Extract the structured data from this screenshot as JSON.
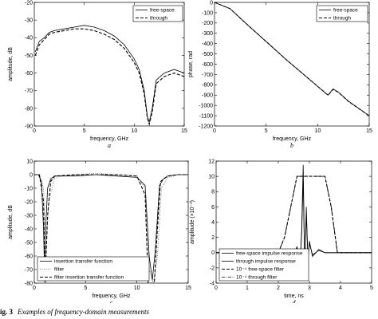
{
  "caption": {
    "label": "ig. 3",
    "text": "Examples of frequency-domain measurements"
  },
  "chart_data": [
    {
      "type": "line",
      "panel": "a",
      "xlabel": "frequency, GHz",
      "ylabel": "amplitude, dB",
      "xlim": [
        0,
        15
      ],
      "ylim": [
        -90,
        -20
      ],
      "xticks": [
        0,
        5,
        10,
        15
      ],
      "yticks": [
        -90,
        -80,
        -70,
        -60,
        -50,
        -40,
        -30,
        -20
      ],
      "legend": {
        "position": "top-right",
        "entries": [
          "free-space",
          "through"
        ]
      },
      "series": [
        {
          "name": "free-space",
          "style": "solid",
          "x": [
            0.1,
            0.5,
            1,
            1.5,
            2,
            3,
            4,
            5,
            6,
            7,
            8,
            9,
            10,
            10.5,
            11,
            11.3,
            11.5,
            11.8,
            12.2,
            13,
            14,
            15
          ],
          "y": [
            -48,
            -42,
            -40,
            -37,
            -36,
            -35,
            -34,
            -33,
            -34,
            -36,
            -39,
            -44,
            -52,
            -58,
            -70,
            -84,
            -88,
            -80,
            -64,
            -60,
            -58,
            -60
          ]
        },
        {
          "name": "through",
          "style": "dashed",
          "x": [
            0.1,
            0.5,
            1,
            1.5,
            2,
            3,
            4,
            5,
            6,
            7,
            8,
            9,
            10,
            10.5,
            11,
            11.3,
            11.5,
            11.8,
            12.2,
            13,
            14,
            15
          ],
          "y": [
            -50,
            -44,
            -41,
            -38,
            -37,
            -36,
            -35,
            -35,
            -36,
            -38,
            -41,
            -46,
            -54,
            -60,
            -72,
            -85,
            -89,
            -82,
            -66,
            -62,
            -60,
            -62
          ]
        }
      ]
    },
    {
      "type": "line",
      "panel": "b",
      "xlabel": "frequency, GHz",
      "ylabel": "phase, rad",
      "xlim": [
        0,
        15
      ],
      "ylim": [
        -1200,
        0
      ],
      "xticks": [
        0,
        5,
        10,
        15
      ],
      "yticks": [
        -1200,
        -1100,
        -1000,
        -900,
        -800,
        -700,
        -600,
        -500,
        -400,
        -300,
        -200,
        -100,
        0
      ],
      "legend": {
        "position": "top-right",
        "entries": [
          "free-space",
          "through"
        ]
      },
      "series": [
        {
          "name": "free-space",
          "style": "solid",
          "x": [
            0,
            0.5,
            1,
            1.5,
            3,
            5,
            7,
            9,
            11,
            11.5,
            12,
            13,
            15
          ],
          "y": [
            0,
            -20,
            -40,
            -60,
            -200,
            -380,
            -560,
            -730,
            -900,
            -840,
            -870,
            -960,
            -1100
          ]
        },
        {
          "name": "through",
          "style": "dashed",
          "x": [
            0,
            0.5,
            1,
            1.5,
            3,
            5,
            7,
            9,
            11,
            11.5,
            12,
            13,
            15
          ],
          "y": [
            0,
            -20,
            -40,
            -60,
            -200,
            -380,
            -560,
            -730,
            -900,
            -845,
            -872,
            -962,
            -1102
          ]
        }
      ]
    },
    {
      "type": "line",
      "panel": "c",
      "xlabel": "frequency, GHz",
      "ylabel": "amplitude, dB",
      "xlim": [
        0,
        15
      ],
      "ylim": [
        -80,
        10
      ],
      "xticks": [
        0,
        5,
        10,
        15
      ],
      "yticks": [
        -80,
        -70,
        -60,
        -50,
        -40,
        -30,
        -20,
        -10,
        0,
        10
      ],
      "legend": {
        "position": "bottom-left",
        "entries": [
          "insertion transfer function",
          "filter",
          "filter insertion transfer function"
        ]
      },
      "series": [
        {
          "name": "insertion transfer function",
          "style": "solid",
          "x": [
            0,
            0.4,
            0.7,
            0.9,
            1.0,
            1.1,
            1.3,
            1.6,
            2,
            4,
            6,
            8,
            10,
            10.8,
            11.2,
            11.5,
            11.8,
            12.2,
            12.6,
            13,
            14,
            15
          ],
          "y": [
            0,
            0,
            -5,
            -40,
            -75,
            -40,
            -10,
            -3,
            -1,
            -1,
            0,
            -1,
            -2,
            -8,
            -60,
            -78,
            -55,
            -8,
            -3,
            -1,
            0,
            0
          ]
        },
        {
          "name": "filter",
          "style": "dotted",
          "x": [
            0,
            0.5,
            0.9,
            1.1,
            1.4,
            2,
            4,
            6,
            8,
            10,
            10.8,
            11.2,
            11.6,
            12.0,
            12.4,
            13,
            14,
            15
          ],
          "y": [
            0,
            0,
            -10,
            -60,
            -20,
            -2,
            0,
            1,
            0,
            -1,
            -10,
            -70,
            -80,
            -60,
            -10,
            -2,
            0,
            0
          ]
        },
        {
          "name": "filter insertion transfer function",
          "style": "dashed",
          "x": [
            0,
            0.5,
            0.9,
            1.05,
            1.3,
            1.6,
            2,
            4,
            6,
            8,
            10,
            10.8,
            11.1,
            11.4,
            11.7,
            12.0,
            12.3,
            13,
            14,
            15
          ],
          "y": [
            0,
            0,
            -20,
            -80,
            -30,
            -5,
            -1,
            0,
            0,
            0,
            -1,
            -15,
            -80,
            -80,
            -80,
            -40,
            -5,
            -1,
            0,
            0
          ]
        }
      ]
    },
    {
      "type": "line",
      "panel": "d",
      "xlabel": "time, ns",
      "ylabel": "amplitude (×10⁻³)",
      "xlim": [
        0,
        5
      ],
      "ylim": [
        -4,
        12
      ],
      "xticks": [
        0,
        1,
        2,
        3,
        4,
        5
      ],
      "yticks": [
        -4,
        -2,
        0,
        2,
        4,
        6,
        8,
        10,
        12
      ],
      "legend": {
        "position": "bottom-left",
        "entries": [
          "free-space impulse response",
          "through impulse response",
          "10⁻⁴ free-space filter",
          "10⁻⁴ through filter"
        ]
      },
      "series": [
        {
          "name": "free-space impulse response",
          "style": "solid",
          "x": [
            0,
            1,
            2,
            2.3,
            2.5,
            2.6,
            2.7,
            2.75,
            2.8,
            2.85,
            2.9,
            2.95,
            3.0,
            3.1,
            3.3,
            3.5,
            4,
            5
          ],
          "y": [
            0,
            0,
            0,
            0.2,
            -0.5,
            0.8,
            -1.5,
            3,
            11.5,
            -2.5,
            6,
            -1,
            1.5,
            -0.5,
            0.4,
            0,
            0,
            0
          ]
        },
        {
          "name": "through impulse response",
          "style": "solid",
          "x": [
            0,
            1,
            2,
            2.3,
            2.5,
            2.6,
            2.7,
            2.75,
            2.8,
            2.85,
            2.9,
            2.95,
            3.0,
            3.1,
            3.3,
            3.5,
            4,
            5
          ],
          "y": [
            0,
            0,
            0,
            0.1,
            -0.4,
            0.6,
            -1.2,
            2.5,
            9.5,
            -2,
            5,
            -0.8,
            1.2,
            -0.3,
            0.3,
            0,
            0,
            0
          ]
        },
        {
          "name": "10⁻⁴ free-space filter",
          "style": "dashed",
          "x": [
            0,
            2.0,
            2.2,
            2.4,
            2.6,
            3.0,
            3.3,
            3.5,
            3.7,
            3.9,
            5
          ],
          "y": [
            0,
            0,
            2,
            6,
            10,
            10,
            10,
            10,
            6,
            0,
            0
          ]
        },
        {
          "name": "10⁻⁴ through filter",
          "style": "dashdot",
          "x": [
            0,
            2.0,
            2.2,
            2.4,
            2.6,
            3.0,
            3.3,
            3.5,
            3.7,
            3.9,
            5
          ],
          "y": [
            0,
            0,
            2,
            6,
            10,
            10,
            10,
            10,
            6,
            0,
            0
          ]
        }
      ]
    }
  ]
}
